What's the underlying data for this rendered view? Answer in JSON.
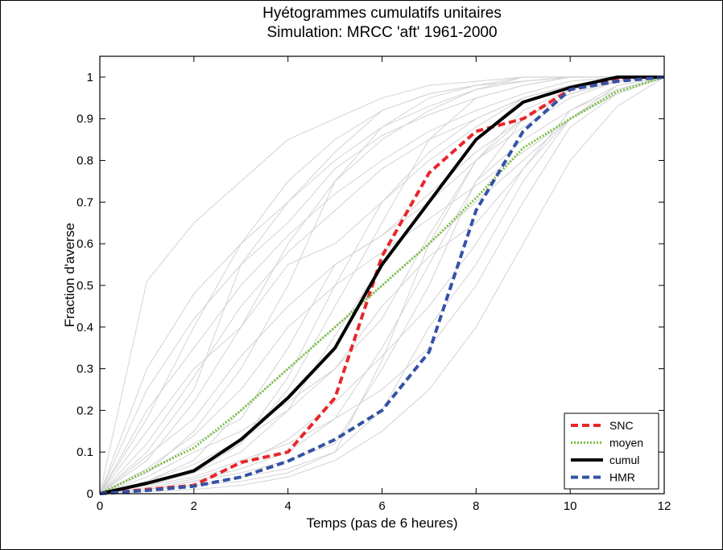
{
  "chart_data": {
    "type": "line",
    "title": [
      "Hyétogrammes cumulatifs unitaires",
      "Simulation:  MRCC 'aft' 1961-2000"
    ],
    "xlabel": "Temps (pas de 6 heures)",
    "ylabel": "Fraction d'averse",
    "xlim": [
      0,
      12
    ],
    "ylim": [
      0,
      1.05
    ],
    "xticks": [
      0,
      2,
      4,
      6,
      8,
      10,
      12
    ],
    "yticks": [
      0,
      0.1,
      0.2,
      0.3,
      0.4,
      0.5,
      0.6,
      0.7,
      0.8,
      0.9,
      1
    ],
    "ytick_labels": [
      "0",
      "0.1",
      "0.2",
      "0.3",
      "0.4",
      "0.5",
      "0.6",
      "0.7",
      "0.8",
      "0.9",
      "1"
    ],
    "grid": false,
    "legend_position": "bottom-right",
    "x": [
      0,
      1,
      2,
      3,
      4,
      5,
      6,
      7,
      8,
      9,
      10,
      11,
      12
    ],
    "series": [
      {
        "name": "SNC",
        "color": "#e8262b",
        "style": "dashed",
        "values": [
          0,
          0.01,
          0.02,
          0.075,
          0.1,
          0.23,
          0.57,
          0.77,
          0.87,
          0.9,
          0.97,
          0.995,
          1
        ]
      },
      {
        "name": "moyen",
        "color": "#7bc043",
        "style": "dotted",
        "values": [
          0,
          0.055,
          0.11,
          0.2,
          0.3,
          0.4,
          0.5,
          0.6,
          0.71,
          0.83,
          0.9,
          0.965,
          1
        ]
      },
      {
        "name": "cumul",
        "color": "#000000",
        "style": "solid",
        "values": [
          0,
          0.025,
          0.055,
          0.13,
          0.23,
          0.35,
          0.55,
          0.7,
          0.85,
          0.94,
          0.975,
          1,
          1
        ]
      },
      {
        "name": "HMR",
        "color": "#3452a6",
        "style": "dashed",
        "values": [
          0,
          0.008,
          0.018,
          0.04,
          0.078,
          0.13,
          0.2,
          0.34,
          0.68,
          0.87,
          0.97,
          0.99,
          1
        ]
      }
    ],
    "background_curves_color": "#d3d3d3",
    "background_curves": [
      [
        0,
        0.51,
        0.65,
        0.75,
        0.85,
        0.9,
        0.95,
        0.98,
        0.99,
        1,
        1,
        1,
        1
      ],
      [
        0,
        0.3,
        0.48,
        0.6,
        0.7,
        0.8,
        0.88,
        0.95,
        0.98,
        0.99,
        1,
        1,
        1
      ],
      [
        0,
        0.1,
        0.25,
        0.55,
        0.7,
        0.82,
        0.92,
        0.96,
        0.98,
        1,
        1,
        1,
        1
      ],
      [
        0,
        0.05,
        0.15,
        0.3,
        0.5,
        0.75,
        0.88,
        0.93,
        0.97,
        0.99,
        1,
        1,
        1
      ],
      [
        0,
        0.02,
        0.06,
        0.12,
        0.25,
        0.45,
        0.65,
        0.85,
        0.95,
        0.98,
        1,
        1,
        1
      ],
      [
        0,
        0.01,
        0.03,
        0.06,
        0.1,
        0.18,
        0.35,
        0.55,
        0.75,
        0.9,
        0.97,
        1,
        1
      ],
      [
        0,
        0.005,
        0.01,
        0.02,
        0.04,
        0.08,
        0.15,
        0.25,
        0.4,
        0.6,
        0.8,
        0.93,
        1
      ],
      [
        0,
        0.01,
        0.02,
        0.04,
        0.06,
        0.1,
        0.2,
        0.4,
        0.55,
        0.75,
        0.9,
        0.98,
        1
      ],
      [
        0,
        0.15,
        0.3,
        0.4,
        0.55,
        0.6,
        0.7,
        0.8,
        0.88,
        0.95,
        0.98,
        1,
        1
      ],
      [
        0,
        0.2,
        0.35,
        0.5,
        0.62,
        0.72,
        0.8,
        0.87,
        0.92,
        0.96,
        0.99,
        1,
        1
      ],
      [
        0,
        0.02,
        0.05,
        0.1,
        0.2,
        0.38,
        0.55,
        0.7,
        0.8,
        0.88,
        0.95,
        0.99,
        1
      ],
      [
        0,
        0.03,
        0.08,
        0.2,
        0.3,
        0.4,
        0.5,
        0.6,
        0.7,
        0.8,
        0.9,
        0.96,
        1
      ],
      [
        0,
        0.05,
        0.12,
        0.18,
        0.35,
        0.55,
        0.62,
        0.7,
        0.85,
        0.95,
        0.98,
        1,
        1
      ],
      [
        0,
        0.01,
        0.03,
        0.05,
        0.08,
        0.12,
        0.3,
        0.5,
        0.75,
        0.85,
        0.92,
        0.97,
        1
      ],
      [
        0,
        0.08,
        0.22,
        0.4,
        0.6,
        0.75,
        0.85,
        0.92,
        0.97,
        1,
        1,
        1,
        1
      ],
      [
        0,
        0.12,
        0.28,
        0.45,
        0.58,
        0.68,
        0.78,
        0.85,
        0.9,
        0.95,
        0.98,
        0.99,
        1
      ],
      [
        0,
        0.04,
        0.1,
        0.15,
        0.22,
        0.3,
        0.42,
        0.62,
        0.8,
        0.92,
        0.97,
        0.99,
        1
      ],
      [
        0,
        0.02,
        0.04,
        0.08,
        0.12,
        0.18,
        0.25,
        0.35,
        0.5,
        0.7,
        0.88,
        0.96,
        1
      ],
      [
        0,
        0.06,
        0.14,
        0.25,
        0.4,
        0.5,
        0.58,
        0.66,
        0.74,
        0.82,
        0.9,
        0.96,
        1
      ],
      [
        0,
        0.01,
        0.02,
        0.03,
        0.05,
        0.1,
        0.32,
        0.6,
        0.8,
        0.9,
        0.96,
        0.99,
        1
      ],
      [
        0,
        0.25,
        0.42,
        0.55,
        0.65,
        0.78,
        0.86,
        0.91,
        0.95,
        0.98,
        1,
        1,
        1
      ],
      [
        0,
        0.03,
        0.07,
        0.13,
        0.2,
        0.3,
        0.45,
        0.57,
        0.65,
        0.78,
        0.9,
        0.97,
        1
      ],
      [
        0,
        0.015,
        0.035,
        0.07,
        0.13,
        0.22,
        0.33,
        0.45,
        0.6,
        0.78,
        0.92,
        0.98,
        1
      ],
      [
        0,
        0.09,
        0.18,
        0.33,
        0.45,
        0.55,
        0.62,
        0.72,
        0.82,
        0.9,
        0.96,
        0.99,
        1
      ],
      [
        0,
        0.02,
        0.05,
        0.12,
        0.28,
        0.5,
        0.7,
        0.82,
        0.9,
        0.95,
        0.98,
        1,
        1
      ],
      [
        0,
        0.18,
        0.4,
        0.6,
        0.75,
        0.85,
        0.92,
        0.96,
        0.98,
        0.99,
        1,
        1,
        1
      ]
    ]
  }
}
